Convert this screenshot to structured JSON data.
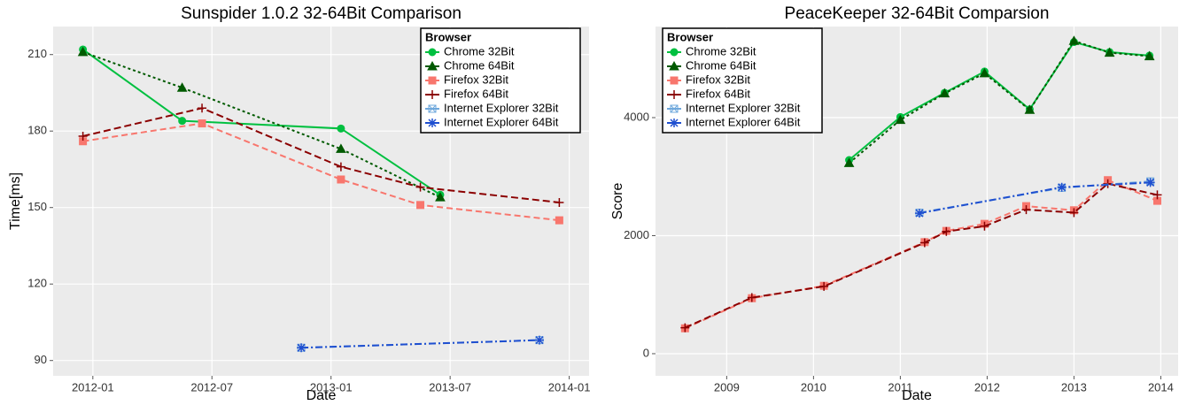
{
  "chart_data": [
    {
      "type": "line",
      "title": "Sunspider 1.0.2 32-64Bit Comparison",
      "x_label": "Date",
      "y_label": "Time[ms]",
      "legend_title": "Browser",
      "legend": "top-right",
      "grid": true,
      "xlim": [
        "2011-11",
        "2014-02"
      ],
      "xticks": [
        "2012-01",
        "2012-07",
        "2013-01",
        "2013-07",
        "2014-01"
      ],
      "ylim": [
        84,
        221
      ],
      "yticks": [
        90,
        120,
        150,
        180,
        210
      ],
      "series": [
        {
          "name": "Chrome 32Bit",
          "color": "#00c040",
          "x": [
            "2011-12",
            "2012-05",
            "2013-01",
            "2013-06"
          ],
          "values": [
            212,
            184,
            181,
            155
          ]
        },
        {
          "name": "Chrome 64Bit",
          "color": "#005a00",
          "x": [
            "2011-12",
            "2012-05",
            "2013-01",
            "2013-06"
          ],
          "values": [
            211,
            197,
            173,
            154
          ]
        },
        {
          "name": "Firefox 32Bit",
          "color": "#f8766d",
          "x": [
            "2011-12",
            "2012-06",
            "2013-01",
            "2013-05",
            "2013-12"
          ],
          "values": [
            176,
            183,
            161,
            151,
            145
          ]
        },
        {
          "name": "Firefox 64Bit",
          "color": "#8b0000",
          "x": [
            "2011-12",
            "2012-06",
            "2013-01",
            "2013-05",
            "2013-12"
          ],
          "values": [
            178,
            189,
            166,
            158,
            152
          ]
        },
        {
          "name": "Internet Explorer 32Bit",
          "color": "#6fa8dc",
          "x": [
            "2012-11",
            "2013-11"
          ],
          "values": [
            95,
            98
          ]
        },
        {
          "name": "Internet Explorer 64Bit",
          "color": "#1f4fd0",
          "x": [
            "2012-11",
            "2013-11"
          ],
          "values": [
            95,
            98
          ]
        }
      ]
    },
    {
      "type": "line",
      "title": "PeaceKeeper 32-64Bit Comparsion",
      "x_label": "Date",
      "y_label": "Score",
      "legend_title": "Browser",
      "legend": "top-left",
      "grid": true,
      "xlim": [
        2008.18,
        2014.2
      ],
      "xticks": [
        2009,
        2010,
        2011,
        2012,
        2013,
        2014
      ],
      "ylim": [
        -375,
        5543
      ],
      "yticks": [
        0,
        2000,
        4000
      ],
      "series": [
        {
          "name": "Chrome 32Bit",
          "color": "#00c040",
          "x": [
            2010.41,
            2011.0,
            2011.51,
            2011.97,
            2012.49,
            2013.0,
            2013.41,
            2013.87
          ],
          "values": [
            3280,
            4010,
            4420,
            4780,
            4140,
            5280,
            5110,
            5050
          ]
        },
        {
          "name": "Chrome 64Bit",
          "color": "#005a00",
          "x": [
            2010.41,
            2011.0,
            2011.51,
            2011.97,
            2012.49,
            2013.0,
            2013.41,
            2013.87
          ],
          "values": [
            3230,
            3960,
            4410,
            4750,
            4130,
            5300,
            5100,
            5040
          ]
        },
        {
          "name": "Firefox 32Bit",
          "color": "#f8766d",
          "x": [
            2008.52,
            2009.29,
            2010.12,
            2011.28,
            2011.53,
            2011.97,
            2012.45,
            2013.0,
            2013.39,
            2013.96
          ],
          "values": [
            430,
            940,
            1150,
            1890,
            2080,
            2200,
            2500,
            2430,
            2940,
            2590
          ]
        },
        {
          "name": "Firefox 64Bit",
          "color": "#8b0000",
          "x": [
            2008.52,
            2009.29,
            2010.12,
            2011.28,
            2011.53,
            2011.97,
            2012.45,
            2013.0,
            2013.39,
            2013.96
          ],
          "values": [
            440,
            950,
            1140,
            1880,
            2070,
            2160,
            2440,
            2390,
            2880,
            2690
          ]
        },
        {
          "name": "Internet Explorer 32Bit",
          "color": "#6fa8dc",
          "x": [
            2011.22,
            2012.86,
            2013.88
          ],
          "values": [
            2390,
            2810,
            2920
          ]
        },
        {
          "name": "Internet Explorer 64Bit",
          "color": "#1f4fd0",
          "x": [
            2011.22,
            2012.86,
            2013.88
          ],
          "values": [
            2380,
            2820,
            2900
          ]
        }
      ]
    }
  ]
}
